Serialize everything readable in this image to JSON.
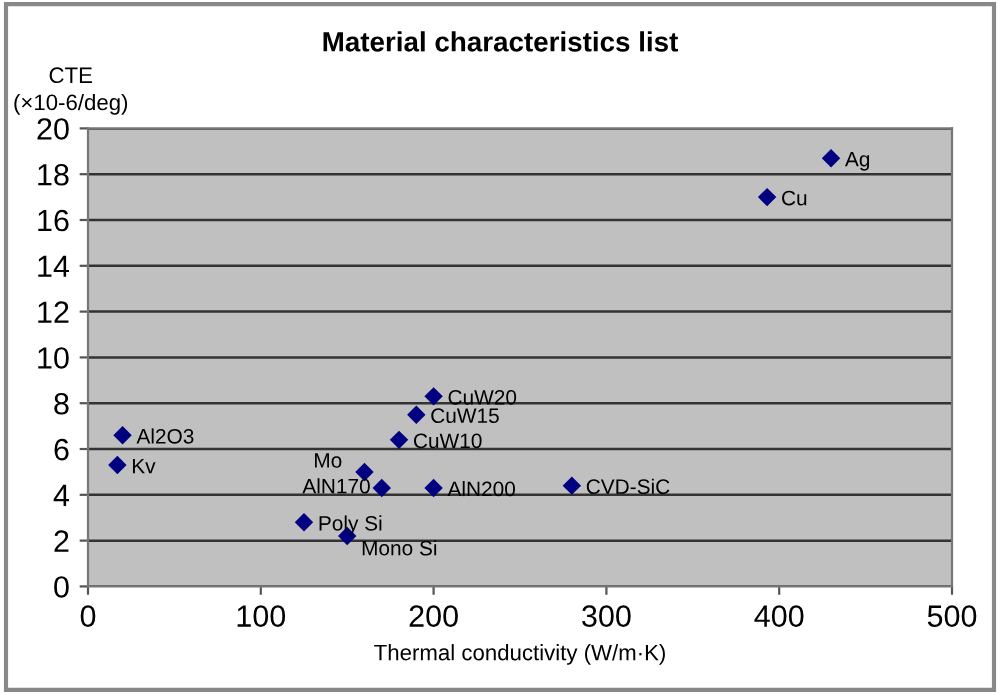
{
  "chart_data": {
    "type": "scatter",
    "title": "Material characteristics list",
    "xlabel": "Thermal conductivity (W/m·K)",
    "ylabel": "CTE\n(×10-6/deg)",
    "x": [
      430,
      393,
      200,
      190,
      180,
      20,
      17,
      160,
      170,
      200,
      280,
      125,
      150
    ],
    "series": [
      {
        "color": "#000080",
        "values": [
          18.7,
          17.0,
          8.3,
          7.5,
          6.4,
          6.6,
          5.3,
          5.0,
          4.3,
          4.3,
          4.4,
          2.8,
          2.2
        ]
      }
    ],
    "marker": "diamond",
    "grid": "y",
    "xlim": [
      0,
      500
    ],
    "ylim": [
      0,
      20
    ],
    "xticks": [
      0,
      100,
      200,
      300,
      400,
      500
    ],
    "yticks": [
      0,
      2,
      4,
      6,
      8,
      10,
      12,
      14,
      16,
      18,
      20
    ],
    "annotations": [
      {
        "text": "Ag",
        "x": 430,
        "y": 18.7
      },
      {
        "text": "Cu",
        "x": 393,
        "y": 17.0
      },
      {
        "text": "CuW20",
        "x": 200,
        "y": 8.3
      },
      {
        "text": "CuW15",
        "x": 190,
        "y": 7.5
      },
      {
        "text": "CuW10",
        "x": 180,
        "y": 6.4
      },
      {
        "text": "Al2O3",
        "x": 20,
        "y": 6.6
      },
      {
        "text": "Kv",
        "x": 17,
        "y": 5.3
      },
      {
        "text": "Mo",
        "x": 160,
        "y": 5.0
      },
      {
        "text": "AlN170",
        "x": 170,
        "y": 4.3
      },
      {
        "text": "AlN200",
        "x": 200,
        "y": 4.3
      },
      {
        "text": "CVD-SiC",
        "x": 280,
        "y": 4.4
      },
      {
        "text": "Poly Si",
        "x": 125,
        "y": 2.8
      },
      {
        "text": "Mono Si",
        "x": 150,
        "y": 2.2
      }
    ]
  }
}
